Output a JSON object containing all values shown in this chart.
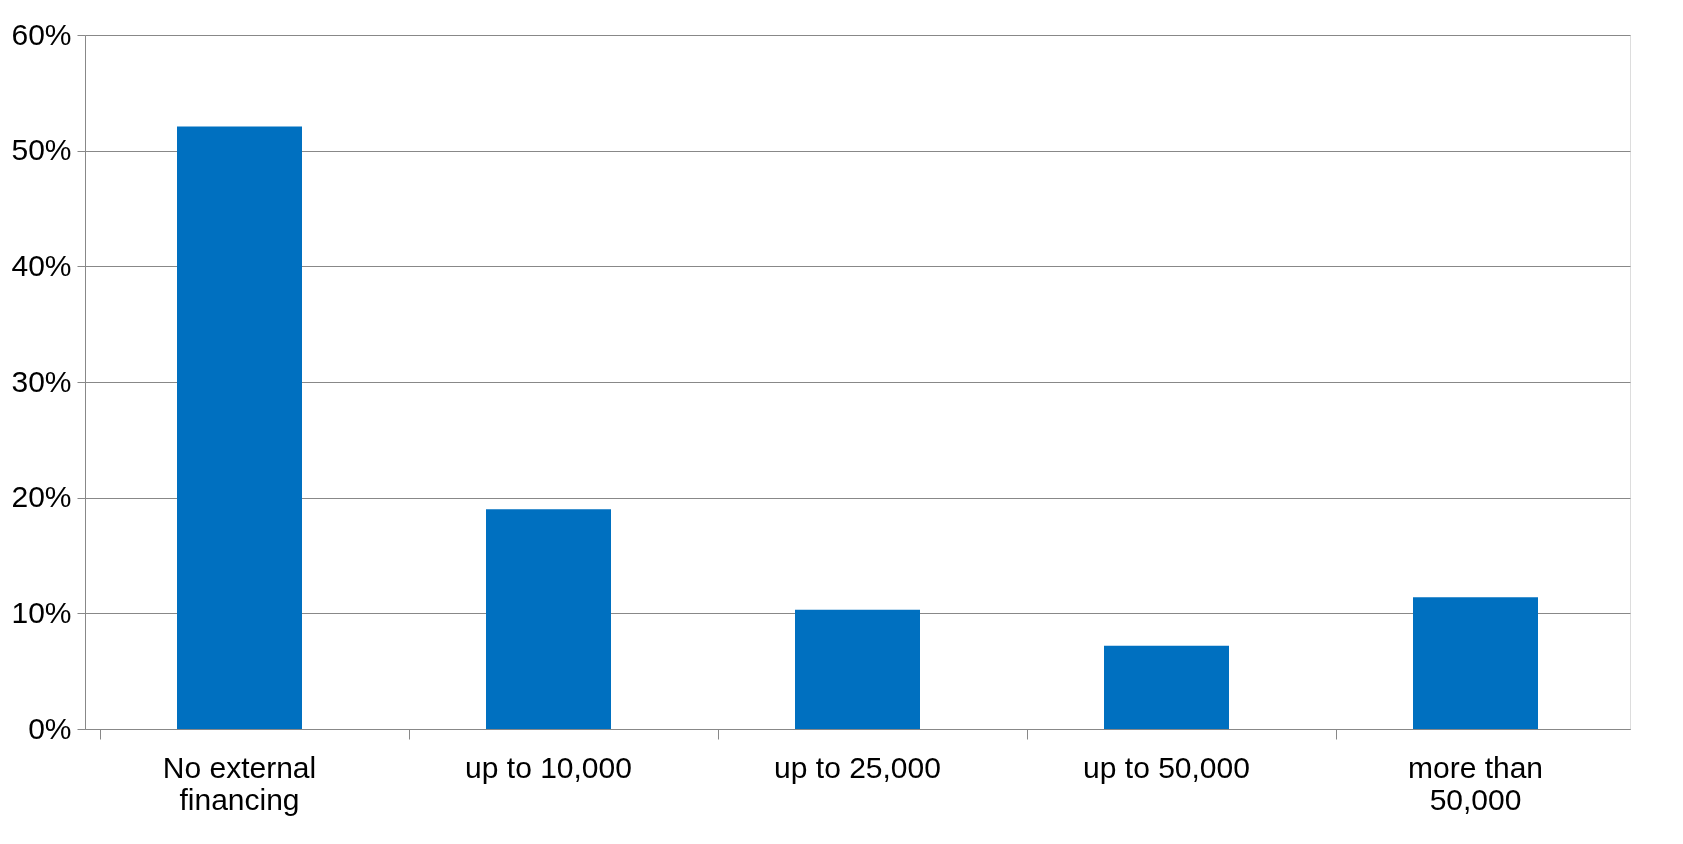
{
  "chart_data": {
    "type": "bar",
    "categories": [
      "No external financing",
      "up to 10,000",
      "up to 25,000",
      "up to 50,000",
      "more than 50,000"
    ],
    "values": [
      52.1,
      19,
      10.3,
      7.2,
      11.4
    ],
    "color": "#0070c0",
    "ylim": [
      0,
      60
    ],
    "yticks": [
      {
        "value": 0,
        "label": "0%"
      },
      {
        "value": 10,
        "label": "10%"
      },
      {
        "value": 20,
        "label": "20%"
      },
      {
        "value": 30,
        "label": "30%"
      },
      {
        "value": 40,
        "label": "40%"
      },
      {
        "value": 50,
        "label": "50%"
      },
      {
        "value": 60,
        "label": "60%"
      }
    ],
    "grid": "y"
  }
}
